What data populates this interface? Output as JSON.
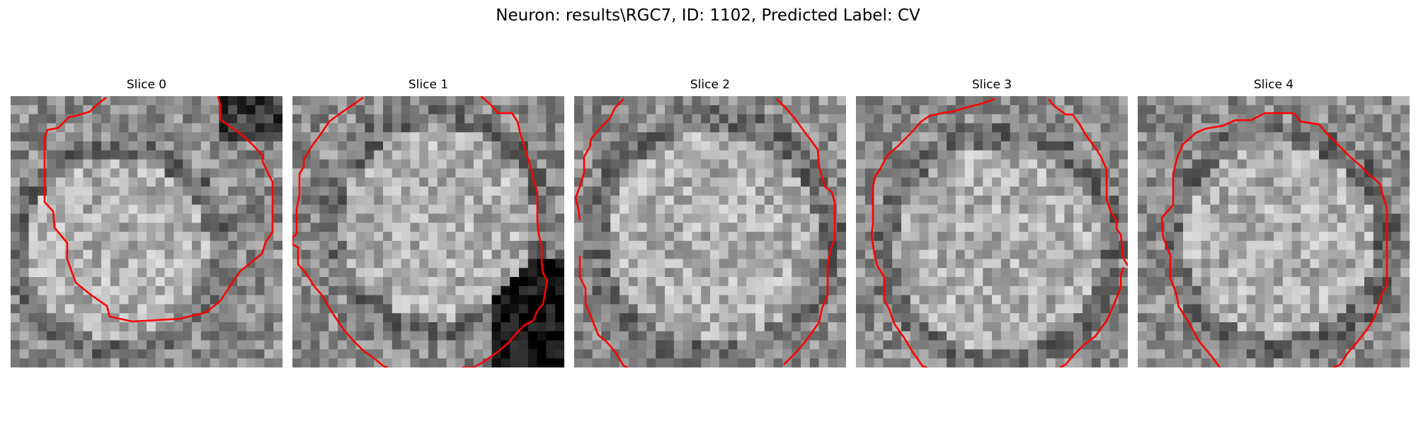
{
  "figure": {
    "title": "Neuron: results\\RGC7, ID: 1102, Predicted Label: CV"
  },
  "panels": [
    {
      "title": "Slice 0",
      "seed": 11
    },
    {
      "title": "Slice 1",
      "seed": 23
    },
    {
      "title": "Slice 2",
      "seed": 37
    },
    {
      "title": "Slice 3",
      "seed": 53
    },
    {
      "title": "Slice 4",
      "seed": 71
    }
  ],
  "style": {
    "contour_color": "#ff0000",
    "background": "#ffffff"
  }
}
